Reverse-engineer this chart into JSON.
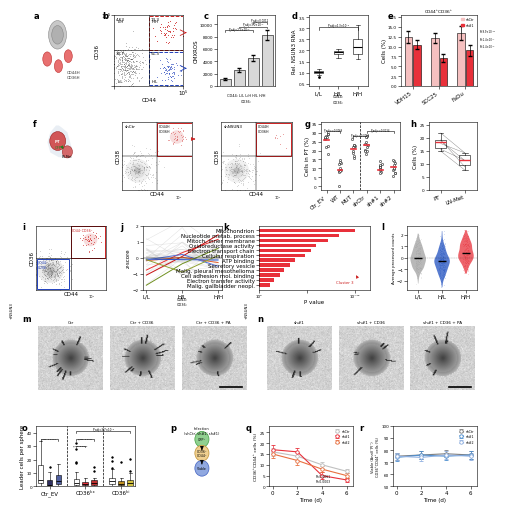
{
  "panel_b": {
    "percentages": [
      "4.63",
      "13.3",
      "30.7",
      "51.3"
    ],
    "quadrant_labels": [
      "L/H",
      "H/H",
      "L/L",
      "H/L"
    ]
  },
  "panel_c": {
    "categories": [
      "L/L",
      "L/H",
      "H/L",
      "H/H"
    ],
    "values": [
      1100,
      2600,
      4600,
      8200
    ],
    "errors": [
      150,
      350,
      500,
      800
    ]
  },
  "panel_d": {
    "categories": [
      "L/L",
      "H/L",
      "H/H"
    ]
  },
  "panel_e": {
    "groups": [
      "VDH15",
      "SCC25",
      "FaDu"
    ],
    "shctr_vals": [
      12.5,
      12.2,
      13.5
    ],
    "sh1_vals": [
      10.5,
      7.0,
      9.0
    ],
    "shctr_err": [
      1.5,
      1.2,
      1.8
    ],
    "sh1_err": [
      1.2,
      1.0,
      1.5
    ],
    "color_shctr": "#f5c0c0",
    "color_sh1": "#e8303a"
  },
  "panel_g": {
    "groups": [
      "Ctr_EV",
      "WT",
      "MUT",
      "shCtr",
      "sh#1",
      "sh#2"
    ],
    "medians": [
      26,
      9,
      21,
      23,
      9,
      11
    ]
  },
  "panel_h": {
    "categories": [
      "PT",
      "LN-Met"
    ]
  },
  "panel_j": {
    "x_labels": [
      "L/L",
      "H/L",
      "H/H"
    ]
  },
  "panel_k": {
    "categories": [
      "Mitochondrion",
      "Nucleotide metab. process",
      "Mitoch. inner membrane",
      "Oxidoreductase activity",
      "Electron transport chain",
      "Cellular respiration",
      "ATP binding",
      "Secretory vesicle",
      "Malig. pleural mesothelioma",
      "Cell adhesion mol. binding",
      "Electron transfer activity",
      "Malig. gallbladder neopl."
    ],
    "values": [
      50,
      42,
      36,
      30,
      27,
      24,
      19,
      16,
      13,
      11,
      8,
      6
    ],
    "bar_color": "#e8303a"
  },
  "panel_l": {
    "groups": [
      "L/L",
      "H/L",
      "H/H"
    ],
    "colors": [
      "#a0a0a0",
      "#2050c0",
      "#e8303a"
    ]
  },
  "panel_o": {
    "box_colors": [
      "#ffffff",
      "#303060",
      "#5060a0",
      "#ffffff",
      "#e8303a",
      "#c03030",
      "#ffffff",
      "#c09020",
      "#d0c040"
    ],
    "group_labels": [
      "Ctr_EV",
      "CD36ᵏˣ",
      "CD36ᵏⁱ"
    ]
  },
  "panel_q": {
    "time_points": [
      0,
      2,
      4,
      6
    ],
    "shCtr": [
      16,
      14,
      10,
      7
    ],
    "sh1": [
      17,
      16,
      5,
      3
    ],
    "sh2": [
      15,
      12,
      8,
      5
    ],
    "errors": [
      2,
      2,
      1.5,
      1
    ],
    "colors": [
      "#c0c0c0",
      "#e8303a",
      "#e87040"
    ],
    "legend": [
      "shCtr",
      "sh#1",
      "sh#2"
    ]
  },
  "panel_r": {
    "time_points": [
      0,
      2,
      4,
      6
    ],
    "shCtr": [
      75,
      76,
      77,
      76
    ],
    "sh1": [
      74,
      76,
      75,
      76
    ],
    "sh2": [
      75,
      74,
      76,
      75
    ],
    "colors": [
      "#808080",
      "#5090d0",
      "#90b0e0"
    ],
    "legend": [
      "shCtr",
      "sh#1",
      "sh#2"
    ]
  }
}
